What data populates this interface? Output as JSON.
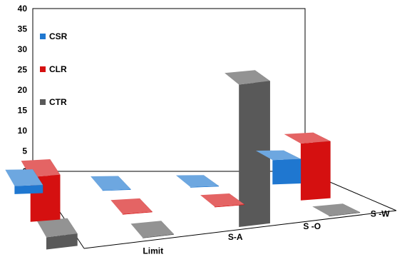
{
  "chart_data": {
    "type": "bar",
    "subtype": "3d-bar",
    "title": "",
    "xlabel": "",
    "ylabel": "",
    "categories": [
      "Limit",
      "S-A",
      "S-O",
      "S-W"
    ],
    "category_labels": [
      "Limit",
      "S-A",
      "S -O",
      "S -W"
    ],
    "ylim": [
      0,
      40
    ],
    "yticks": [
      "0",
      "5",
      "10",
      "15",
      "20",
      "25",
      "30",
      "35",
      "40"
    ],
    "grid": false,
    "legend_position": "top-left",
    "series": [
      {
        "name": "CSR",
        "color": "#1f77d0",
        "values": [
          2,
          0,
          0,
          6
        ]
      },
      {
        "name": "CLR",
        "color": "#d51010",
        "values": [
          11,
          0,
          0,
          14
        ]
      },
      {
        "name": "CTR",
        "color": "#595959",
        "values": [
          3,
          0,
          35,
          0
        ]
      }
    ]
  }
}
